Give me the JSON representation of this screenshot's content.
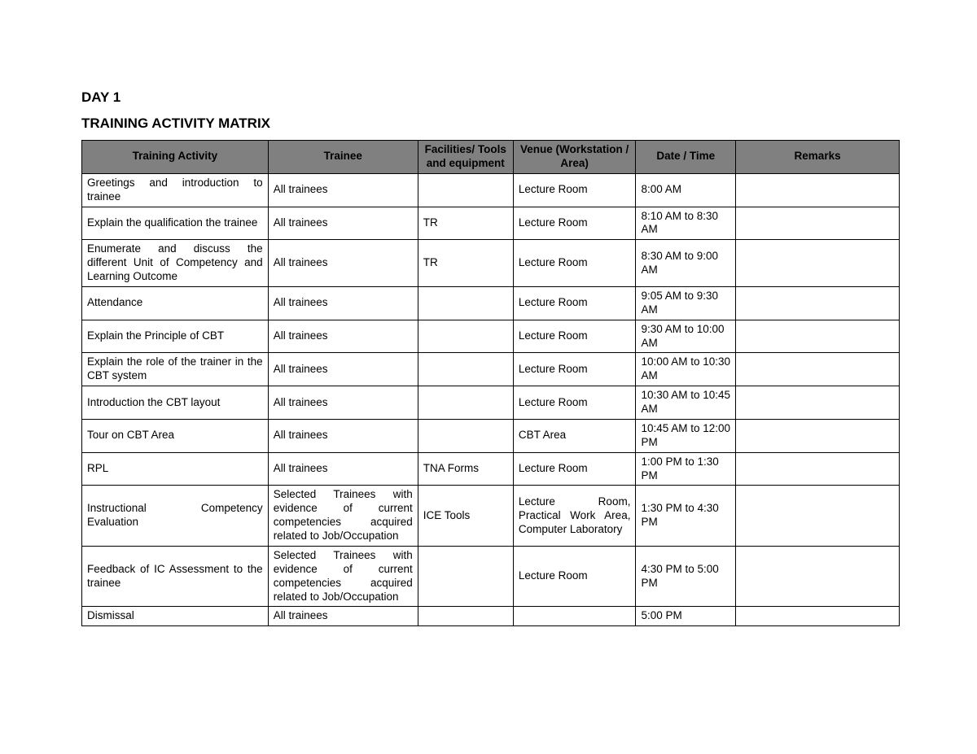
{
  "headings": {
    "day": "DAY 1",
    "title": "TRAINING ACTIVITY MATRIX"
  },
  "table": {
    "columns": [
      "Training Activity",
      "Trainee",
      "Facilities/ Tools and equipment",
      "Venue (Workstation / Area)",
      "Date / Time",
      "Remarks"
    ],
    "header_bg": "#808080",
    "header_fg": "#000000",
    "border_color": "#000000",
    "font_size_pt": 10,
    "rows": [
      {
        "activity": "Greetings and introduction to trainee",
        "trainee": "All trainees",
        "tools": "",
        "venue": "Lecture Room",
        "datetime": "8:00 AM",
        "remarks": ""
      },
      {
        "activity": "Explain the qualification the trainee",
        "trainee": "All trainees",
        "tools": "TR",
        "venue": "Lecture Room",
        "datetime": "8:10 AM to 8:30 AM",
        "remarks": ""
      },
      {
        "activity": "Enumerate and discuss the different Unit of Competency and Learning Outcome",
        "trainee": "All trainees",
        "tools": "TR",
        "venue": "Lecture Room",
        "datetime": "8:30 AM to 9:00 AM",
        "remarks": ""
      },
      {
        "activity": "Attendance",
        "trainee": "All trainees",
        "tools": "",
        "venue": "Lecture Room",
        "datetime": "9:05 AM to 9:30 AM",
        "remarks": ""
      },
      {
        "activity": "Explain the Principle of CBT",
        "trainee": "All trainees",
        "tools": "",
        "venue": "Lecture Room",
        "datetime": "9:30 AM to 10:00 AM",
        "remarks": ""
      },
      {
        "activity": "Explain the role of the trainer in the CBT system",
        "trainee": "All trainees",
        "tools": "",
        "venue": "Lecture Room",
        "datetime": "10:00 AM to 10:30 AM",
        "remarks": ""
      },
      {
        "activity": "Introduction the CBT layout",
        "trainee": "All trainees",
        "tools": "",
        "venue": "Lecture Room",
        "datetime": "10:30 AM to 10:45 AM",
        "remarks": ""
      },
      {
        "activity": "Tour on CBT Area",
        "trainee": "All trainees",
        "tools": "",
        "venue": "CBT Area",
        "datetime": "10:45 AM to 12:00 PM",
        "remarks": ""
      },
      {
        "activity": "RPL",
        "trainee": "All trainees",
        "tools": "TNA Forms",
        "venue": "Lecture Room",
        "datetime": "1:00 PM to 1:30 PM",
        "remarks": ""
      },
      {
        "activity": "Instructional Competency Evaluation",
        "trainee": "Selected Trainees with evidence of current competencies acquired related to Job/Occupation",
        "tools": "ICE Tools",
        "venue": "Lecture Room, Practical Work Area, Computer Laboratory",
        "datetime": "1:30 PM to 4:30 PM",
        "remarks": ""
      },
      {
        "activity": "Feedback of IC Assessment to the trainee",
        "trainee": "Selected Trainees with evidence of current competencies acquired related to Job/Occupation",
        "tools": "",
        "venue": "Lecture Room",
        "datetime": "4:30 PM to 5:00 PM",
        "remarks": ""
      },
      {
        "activity": "Dismissal",
        "trainee": "All trainees",
        "tools": "",
        "venue": "",
        "datetime": "5:00 PM",
        "remarks": ""
      }
    ]
  }
}
